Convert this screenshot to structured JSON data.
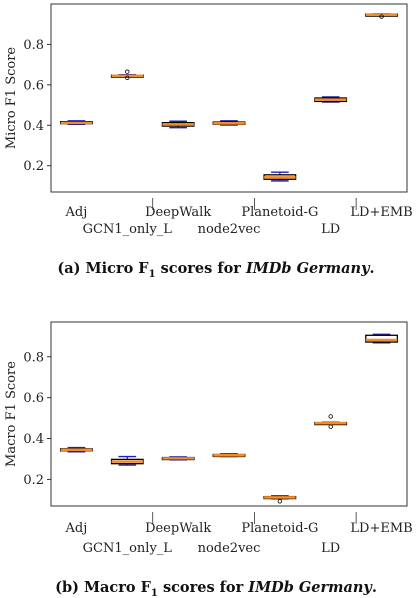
{
  "chart_data": [
    {
      "type": "box",
      "ylabel": "Micro F1 Score",
      "ylim": [
        0.07,
        1.0
      ],
      "yticks": [
        "0.2",
        "0.4",
        "0.6",
        "0.8"
      ],
      "categories": [
        "Adj",
        "GCN1_only_L",
        "DeepWalk",
        "node2vec",
        "Planetoid-G",
        "LD",
        "LD+EMB"
      ],
      "boxes": [
        {
          "category": "Adj",
          "whislo": 0.405,
          "q1": 0.408,
          "med": 0.412,
          "q3": 0.418,
          "whishi": 0.422,
          "fliers": []
        },
        {
          "category": "GCN1_only_L",
          "whislo": 0.64,
          "q1": 0.642,
          "med": 0.645,
          "q3": 0.648,
          "whishi": 0.65,
          "fliers": [
            0.665,
            0.635
          ]
        },
        {
          "category": "DeepWalk",
          "whislo": 0.388,
          "q1": 0.396,
          "med": 0.404,
          "q3": 0.413,
          "whishi": 0.42,
          "fliers": []
        },
        {
          "category": "node2vec",
          "whislo": 0.401,
          "q1": 0.405,
          "med": 0.41,
          "q3": 0.416,
          "whishi": 0.422,
          "fliers": []
        },
        {
          "category": "Planetoid-G",
          "whislo": 0.125,
          "q1": 0.133,
          "med": 0.142,
          "q3": 0.155,
          "whishi": 0.168,
          "fliers": []
        },
        {
          "category": "LD",
          "whislo": 0.515,
          "q1": 0.518,
          "med": 0.527,
          "q3": 0.535,
          "whishi": 0.54,
          "fliers": []
        },
        {
          "category": "LD+EMB",
          "whislo": 0.942,
          "q1": 0.944,
          "med": 0.947,
          "q3": 0.95,
          "whishi": 0.951,
          "fliers": [
            0.938
          ]
        }
      ],
      "caption": "(a) Micro F1 scores for IMDb Germany."
    },
    {
      "type": "box",
      "ylabel": "Macro F1 Score",
      "ylim": [
        0.07,
        0.97
      ],
      "yticks": [
        "0.2",
        "0.4",
        "0.6",
        "0.8"
      ],
      "categories": [
        "Adj",
        "GCN1_only_L",
        "DeepWalk",
        "node2vec",
        "Planetoid-G",
        "LD",
        "LD+EMB"
      ],
      "boxes": [
        {
          "category": "Adj",
          "whislo": 0.335,
          "q1": 0.34,
          "med": 0.345,
          "q3": 0.35,
          "whishi": 0.356,
          "fliers": []
        },
        {
          "category": "GCN1_only_L",
          "whislo": 0.27,
          "q1": 0.277,
          "med": 0.287,
          "q3": 0.298,
          "whishi": 0.312,
          "fliers": []
        },
        {
          "category": "DeepWalk",
          "whislo": 0.296,
          "q1": 0.299,
          "med": 0.303,
          "q3": 0.307,
          "whishi": 0.31,
          "fliers": []
        },
        {
          "category": "node2vec",
          "whislo": 0.312,
          "q1": 0.315,
          "med": 0.318,
          "q3": 0.322,
          "whishi": 0.325,
          "fliers": []
        },
        {
          "category": "Planetoid-G",
          "whislo": 0.105,
          "q1": 0.108,
          "med": 0.112,
          "q3": 0.116,
          "whishi": 0.12,
          "fliers": [
            0.093
          ]
        },
        {
          "category": "LD",
          "whislo": 0.47,
          "q1": 0.472,
          "med": 0.475,
          "q3": 0.478,
          "whishi": 0.48,
          "fliers": [
            0.508,
            0.458
          ]
        },
        {
          "category": "LD+EMB",
          "whislo": 0.868,
          "q1": 0.872,
          "med": 0.882,
          "q3": 0.905,
          "whishi": 0.91,
          "fliers": []
        }
      ],
      "caption": "(b) Macro F1 scores for IMDb Germany."
    }
  ],
  "style": {
    "box_edge": "#000000",
    "whisker_color": "#1f1fb4",
    "median_color": "#f28c28"
  }
}
